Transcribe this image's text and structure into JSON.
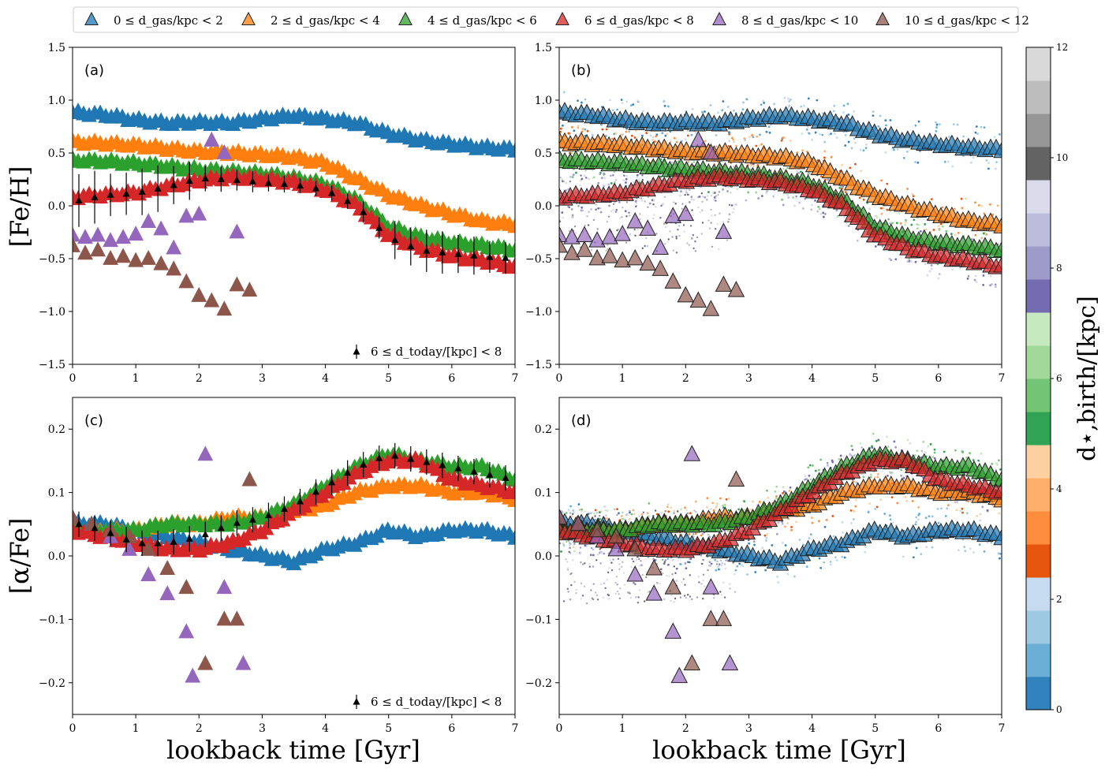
{
  "figure": {
    "xlabel": "lookback time [Gyr]",
    "ylabel_top": "[Fe/H]",
    "ylabel_bottom": "[α/Fe]",
    "colorbar_label": "d⋆,birth/[kpc]",
    "colorbar_ticks": [
      "0",
      "2",
      "4",
      "6",
      "8",
      "10",
      "12"
    ],
    "colorbar_colors": [
      "#3182bd",
      "#6baed6",
      "#9ecae1",
      "#c6dbef",
      "#e6550d",
      "#fd8d3c",
      "#fdae6b",
      "#fdd0a2",
      "#31a354",
      "#74c476",
      "#a1d99b",
      "#c7e9c0",
      "#756bb1",
      "#9e9ac8",
      "#bcbddc",
      "#dadaeb",
      "#636363",
      "#969696",
      "#bdbdbd",
      "#d9d9d9"
    ],
    "inset_label": "6 ≤ d_today/[kpc] < 8"
  },
  "legend": [
    {
      "label": "0 ≤ d_gas/kpc < 2",
      "color": "#1f77b4"
    },
    {
      "label": "2 ≤ d_gas/kpc < 4",
      "color": "#ff7f0e"
    },
    {
      "label": "4 ≤ d_gas/kpc < 6",
      "color": "#2ca02c"
    },
    {
      "label": "6 ≤ d_gas/kpc < 8",
      "color": "#d62728"
    },
    {
      "label": "8 ≤ d_gas/kpc < 10",
      "color": "#9467bd"
    },
    {
      "label": "10 ≤ d_gas/kpc < 12",
      "color": "#8c564b"
    }
  ],
  "chart_data": [
    {
      "panel": "(a)",
      "type": "scatter",
      "xlabel": "lookback time [Gyr]",
      "ylabel": "[Fe/H]",
      "xlim": [
        0,
        7
      ],
      "ylim": [
        -1.5,
        1.5
      ],
      "xticks": [
        "0",
        "1",
        "2",
        "3",
        "4",
        "5",
        "6",
        "7"
      ],
      "yticks": [
        "−1.5",
        "−1.0",
        "−0.5",
        "0.0",
        "0.5",
        "1.0",
        "1.5"
      ],
      "series": [
        {
          "name": "0 ≤ d_gas/kpc < 2",
          "x": [
            0,
            0.5,
            1,
            1.5,
            2,
            2.5,
            3,
            3.5,
            4,
            4.5,
            5,
            5.5,
            6,
            6.5,
            7
          ],
          "y": [
            0.88,
            0.86,
            0.81,
            0.78,
            0.79,
            0.78,
            0.82,
            0.85,
            0.82,
            0.78,
            0.68,
            0.62,
            0.58,
            0.55,
            0.53
          ]
        },
        {
          "name": "2 ≤ d_gas/kpc < 4",
          "x": [
            0,
            0.5,
            1,
            1.5,
            2,
            2.5,
            3,
            3.5,
            4,
            4.5,
            5,
            5.5,
            6,
            6.5,
            7
          ],
          "y": [
            0.6,
            0.59,
            0.57,
            0.54,
            0.51,
            0.5,
            0.48,
            0.46,
            0.4,
            0.25,
            0.1,
            0.0,
            -0.08,
            -0.15,
            -0.18
          ]
        },
        {
          "name": "4 ≤ d_gas/kpc < 6",
          "x": [
            0,
            0.5,
            1,
            1.5,
            2,
            2.5,
            3,
            3.5,
            4,
            4.5,
            5,
            5.5,
            6,
            6.5,
            7
          ],
          "y": [
            0.43,
            0.42,
            0.4,
            0.37,
            0.34,
            0.32,
            0.3,
            0.26,
            0.2,
            0.05,
            -0.2,
            -0.3,
            -0.35,
            -0.38,
            -0.42
          ]
        },
        {
          "name": "6 ≤ d_gas/kpc < 8",
          "x": [
            0,
            0.5,
            1,
            1.5,
            2,
            2.5,
            3,
            3.5,
            4,
            4.5,
            5,
            5.5,
            6,
            6.5,
            7
          ],
          "y": [
            0.08,
            0.1,
            0.12,
            0.18,
            0.24,
            0.27,
            0.25,
            0.22,
            0.15,
            0.0,
            -0.28,
            -0.4,
            -0.48,
            -0.52,
            -0.58
          ]
        },
        {
          "name": "8 ≤ d_gas/kpc < 10",
          "x": [
            0,
            0.2,
            0.4,
            0.6,
            0.8,
            1.0,
            1.2,
            1.4,
            1.6,
            1.8,
            2.0,
            2.2,
            2.4,
            2.6
          ],
          "y": [
            -0.28,
            -0.3,
            -0.28,
            -0.33,
            -0.3,
            -0.27,
            -0.15,
            -0.22,
            -0.4,
            -0.1,
            -0.08,
            0.62,
            0.5,
            -0.25
          ]
        },
        {
          "name": "10 ≤ d_gas/kpc < 12",
          "x": [
            0,
            0.2,
            0.4,
            0.6,
            0.8,
            1.0,
            1.2,
            1.4,
            1.6,
            1.8,
            2.0,
            2.2,
            2.4,
            2.6,
            2.8
          ],
          "y": [
            -0.38,
            -0.45,
            -0.42,
            -0.5,
            -0.48,
            -0.52,
            -0.5,
            -0.55,
            -0.6,
            -0.72,
            -0.85,
            -0.9,
            -0.98,
            -0.75,
            -0.8
          ]
        }
      ],
      "reference": {
        "name": "6 ≤ d_today/[kpc] < 8",
        "x": [
          0.1,
          0.5,
          1,
          1.5,
          2,
          2.5,
          3,
          3.5,
          4,
          4.5,
          5,
          5.5,
          6,
          6.5,
          7
        ],
        "y": [
          0.05,
          0.1,
          0.12,
          0.18,
          0.26,
          0.25,
          0.22,
          0.2,
          0.15,
          0.0,
          -0.3,
          -0.42,
          -0.45,
          -0.48,
          -0.5
        ],
        "err": [
          0.25,
          0.2,
          0.22,
          0.18,
          0.12,
          0.1,
          0.08,
          0.07,
          0.07,
          0.1,
          0.18,
          0.2,
          0.18,
          0.15,
          0.15
        ]
      }
    },
    {
      "panel": "(b)",
      "type": "scatter",
      "xlabel": "lookback time [Gyr]",
      "ylabel": "[Fe/H]",
      "xlim": [
        0,
        7
      ],
      "ylim": [
        -1.5,
        1.5
      ],
      "xticks": [
        "0",
        "1",
        "2",
        "3",
        "4",
        "5",
        "6",
        "7"
      ],
      "yticks": [
        "−1.5",
        "−1.0",
        "−0.5",
        "0.0",
        "0.5",
        "1.0",
        "1.5"
      ],
      "note": "same binned tracks as (a) overplotted on star particles colored by birth radius"
    },
    {
      "panel": "(c)",
      "type": "scatter",
      "xlabel": "lookback time [Gyr]",
      "ylabel": "[α/Fe]",
      "xlim": [
        0,
        7
      ],
      "ylim": [
        -0.25,
        0.25
      ],
      "xticks": [
        "0",
        "1",
        "2",
        "3",
        "4",
        "5",
        "6",
        "7"
      ],
      "yticks": [
        "−0.2",
        "−0.1",
        "0.0",
        "0.1",
        "0.2"
      ],
      "series": [
        {
          "name": "0 ≤ d_gas/kpc < 2",
          "x": [
            0,
            0.5,
            1,
            1.5,
            2,
            2.5,
            3,
            3.5,
            4,
            4.5,
            5,
            5.5,
            6,
            6.5,
            7
          ],
          "y": [
            0.05,
            0.05,
            0.04,
            0.03,
            0.02,
            0.01,
            0.0,
            -0.01,
            0.01,
            0.02,
            0.04,
            0.03,
            0.04,
            0.04,
            0.03
          ]
        },
        {
          "name": "2 ≤ d_gas/kpc < 4",
          "x": [
            0,
            0.5,
            1,
            1.5,
            2,
            2.5,
            3,
            3.5,
            4,
            4.5,
            5,
            5.5,
            6,
            6.5,
            7
          ],
          "y": [
            0.04,
            0.04,
            0.04,
            0.05,
            0.05,
            0.06,
            0.06,
            0.07,
            0.08,
            0.1,
            0.11,
            0.11,
            0.1,
            0.1,
            0.09
          ]
        },
        {
          "name": "4 ≤ d_gas/kpc < 6",
          "x": [
            0,
            0.5,
            1,
            1.5,
            2,
            2.5,
            3,
            3.5,
            4,
            4.5,
            5,
            5.5,
            6,
            6.5,
            7
          ],
          "y": [
            0.04,
            0.04,
            0.04,
            0.05,
            0.05,
            0.05,
            0.06,
            0.08,
            0.11,
            0.14,
            0.16,
            0.15,
            0.14,
            0.14,
            0.12
          ]
        },
        {
          "name": "6 ≤ d_gas/kpc < 8",
          "x": [
            0,
            0.5,
            1,
            1.5,
            2,
            2.5,
            3,
            3.5,
            4,
            4.5,
            5,
            5.5,
            6,
            6.5,
            7
          ],
          "y": [
            0.04,
            0.03,
            0.02,
            0.01,
            0.01,
            0.02,
            0.04,
            0.07,
            0.1,
            0.13,
            0.15,
            0.15,
            0.12,
            0.11,
            0.1
          ]
        },
        {
          "name": "8 ≤ d_gas/kpc < 10",
          "x": [
            0,
            0.3,
            0.6,
            0.9,
            1.2,
            1.5,
            1.8,
            1.9,
            2.1,
            2.4,
            2.7
          ],
          "y": [
            0.06,
            0.05,
            0.03,
            0.01,
            -0.03,
            -0.06,
            -0.12,
            -0.19,
            0.16,
            -0.05,
            -0.17
          ]
        },
        {
          "name": "10 ≤ d_gas/kpc < 12",
          "x": [
            0,
            0.3,
            0.6,
            0.9,
            1.2,
            1.5,
            1.8,
            2.1,
            2.4,
            2.6,
            2.8
          ],
          "y": [
            0.06,
            0.05,
            0.04,
            0.03,
            0.01,
            -0.02,
            -0.05,
            -0.17,
            -0.1,
            -0.1,
            0.12
          ]
        }
      ],
      "reference": {
        "name": "6 ≤ d_today/[kpc] < 8",
        "x": [
          0.1,
          0.5,
          1,
          1.5,
          2,
          2.5,
          3,
          3.5,
          4,
          4.5,
          5,
          5.5,
          6,
          6.5,
          7
        ],
        "y": [
          0.05,
          0.04,
          0.02,
          0.02,
          0.03,
          0.05,
          0.06,
          0.08,
          0.11,
          0.14,
          0.16,
          0.15,
          0.14,
          0.13,
          0.12
        ],
        "err": [
          0.02,
          0.02,
          0.02,
          0.02,
          0.02,
          0.02,
          0.02,
          0.02,
          0.02,
          0.02,
          0.02,
          0.02,
          0.02,
          0.02,
          0.02
        ]
      }
    },
    {
      "panel": "(d)",
      "type": "scatter",
      "xlabel": "lookback time [Gyr]",
      "ylabel": "[α/Fe]",
      "xlim": [
        0,
        7
      ],
      "ylim": [
        -0.25,
        0.25
      ],
      "xticks": [
        "0",
        "1",
        "2",
        "3",
        "4",
        "5",
        "6",
        "7"
      ],
      "yticks": [
        "−0.2",
        "−0.1",
        "0.0",
        "0.1",
        "0.2"
      ],
      "note": "same binned tracks as (c) overplotted on star particles colored by birth radius"
    }
  ]
}
